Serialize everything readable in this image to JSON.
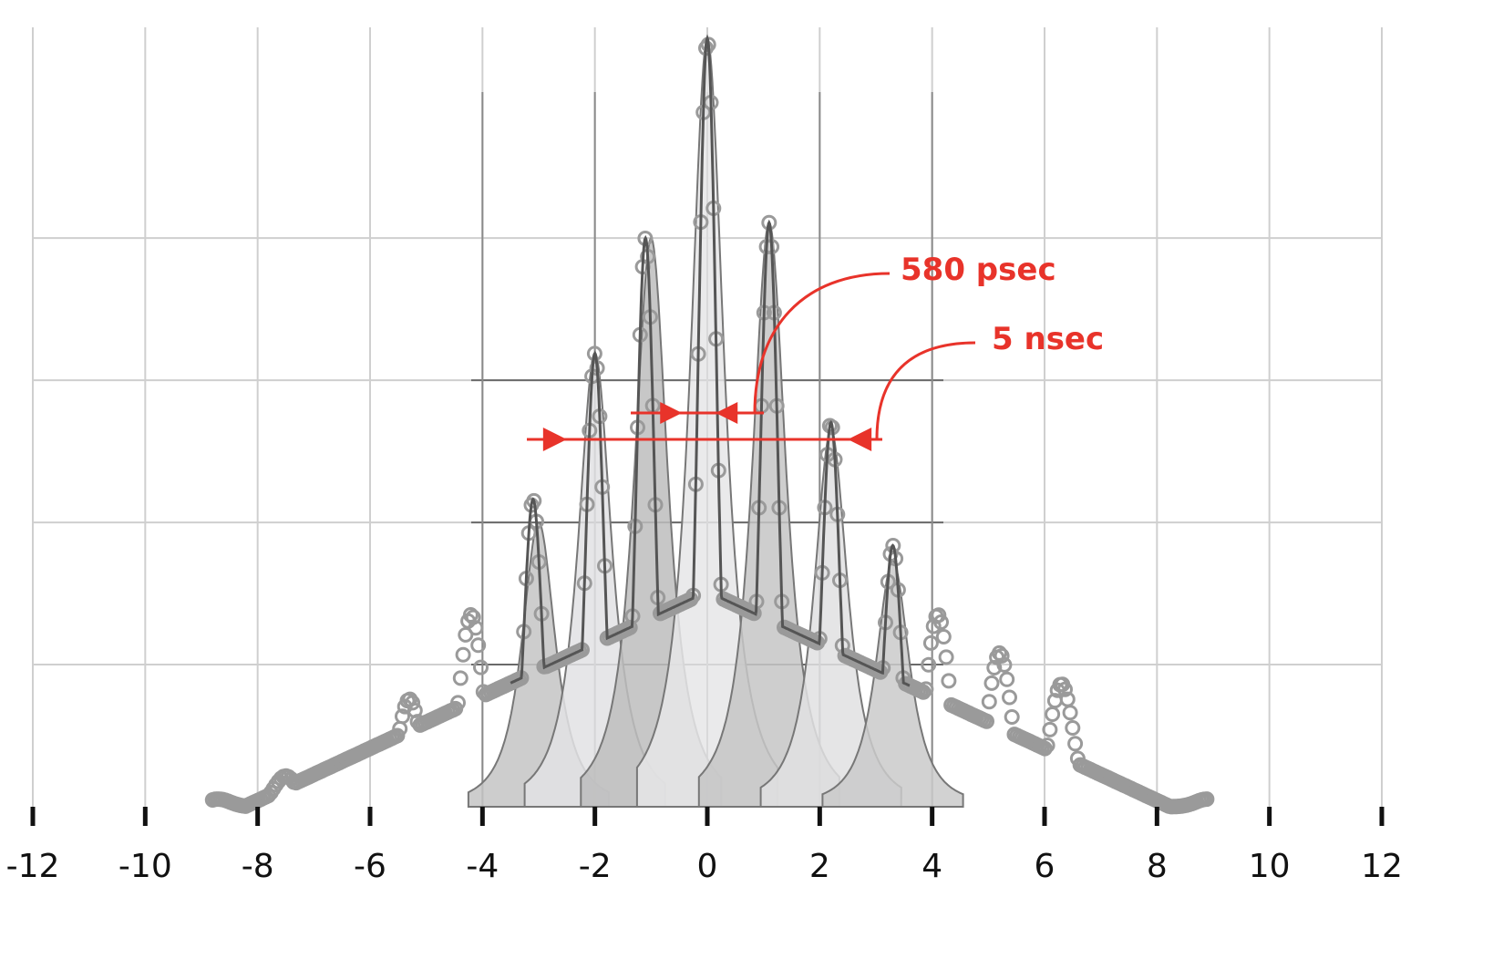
{
  "chart_data": {
    "type": "scatter",
    "title": "",
    "xlabel": "",
    "ylabel": "",
    "xlim": [
      -12,
      12
    ],
    "ylim": [
      0,
      1
    ],
    "x_ticks": [
      -12,
      -10,
      -8,
      -6,
      -4,
      -2,
      0,
      2,
      4,
      6,
      8,
      10,
      12
    ],
    "grid": true,
    "colors": {
      "points": "#9a9a9a",
      "fit": "#555555",
      "annotation": "#e8332a",
      "axis": "#111111"
    },
    "component_peaks": [
      {
        "center": -3.0,
        "height": 0.37
      },
      {
        "center": -2.0,
        "height": 0.59
      },
      {
        "center": -1.0,
        "height": 0.74
      },
      {
        "center": 0.0,
        "height": 1.0
      },
      {
        "center": 1.1,
        "height": 0.76
      },
      {
        "center": 2.2,
        "height": 0.49
      },
      {
        "center": 3.3,
        "height": 0.32
      }
    ],
    "envelope_peaks": [
      {
        "x": -8.7,
        "y": 0.01
      },
      {
        "x": -7.5,
        "y": 0.04
      },
      {
        "x": -6.4,
        "y": 0.06
      },
      {
        "x": -5.3,
        "y": 0.14
      },
      {
        "x": -4.2,
        "y": 0.25
      },
      {
        "x": -3.1,
        "y": 0.4
      },
      {
        "x": -2.0,
        "y": 0.59
      },
      {
        "x": -1.1,
        "y": 0.74
      },
      {
        "x": 0.0,
        "y": 1.0
      },
      {
        "x": 1.1,
        "y": 0.76
      },
      {
        "x": 2.2,
        "y": 0.5
      },
      {
        "x": 3.3,
        "y": 0.34
      },
      {
        "x": 4.1,
        "y": 0.25
      },
      {
        "x": 5.2,
        "y": 0.2
      },
      {
        "x": 6.3,
        "y": 0.16
      },
      {
        "x": 8.9,
        "y": 0.01
      }
    ],
    "annotations": [
      {
        "text": "580 psec",
        "x_range": [
          -0.45,
          0.15
        ]
      },
      {
        "text": "5 nsec",
        "x_range": [
          -2.5,
          2.5
        ]
      }
    ]
  }
}
